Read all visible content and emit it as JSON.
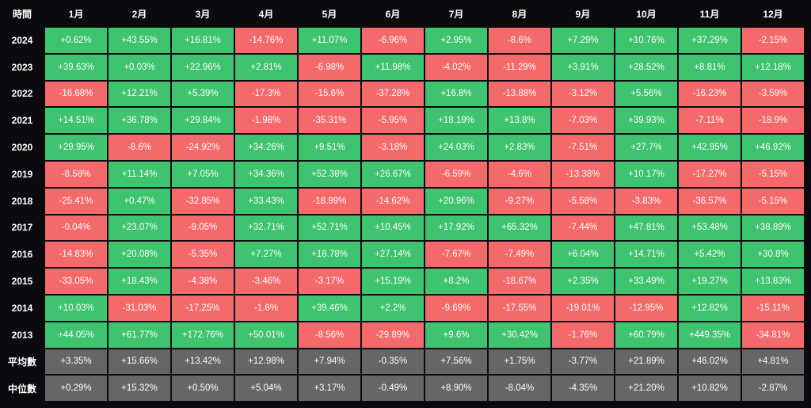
{
  "chart_data": {
    "type": "heatmap",
    "corner_label": "時間",
    "columns": [
      "1月",
      "2月",
      "3月",
      "4月",
      "5月",
      "6月",
      "7月",
      "8月",
      "9月",
      "10月",
      "11月",
      "12月"
    ],
    "rows": [
      {
        "label": "2024",
        "values": [
          "+0.62%",
          "+43.55%",
          "+16.81%",
          "-14.76%",
          "+11.07%",
          "-6.96%",
          "+2.95%",
          "-8.6%",
          "+7.29%",
          "+10.76%",
          "+37.29%",
          "-2.15%"
        ]
      },
      {
        "label": "2023",
        "values": [
          "+39.63%",
          "+0.03%",
          "+22.96%",
          "+2.81%",
          "-6.98%",
          "+11.98%",
          "-4.02%",
          "-11.29%",
          "+3.91%",
          "+28.52%",
          "+8.81%",
          "+12.18%"
        ]
      },
      {
        "label": "2022",
        "values": [
          "-16.68%",
          "+12.21%",
          "+5.39%",
          "-17.3%",
          "-15.6%",
          "-37.28%",
          "+16.8%",
          "-13.88%",
          "-3.12%",
          "+5.56%",
          "-16.23%",
          "-3.59%"
        ]
      },
      {
        "label": "2021",
        "values": [
          "+14.51%",
          "+36.78%",
          "+29.84%",
          "-1.98%",
          "-35.31%",
          "-5.95%",
          "+18.19%",
          "+13.8%",
          "-7.03%",
          "+39.93%",
          "-7.11%",
          "-18.9%"
        ]
      },
      {
        "label": "2020",
        "values": [
          "+29.95%",
          "-8.6%",
          "-24.92%",
          "+34.26%",
          "+9.51%",
          "-3.18%",
          "+24.03%",
          "+2.83%",
          "-7.51%",
          "+27.7%",
          "+42.95%",
          "+46.92%"
        ]
      },
      {
        "label": "2019",
        "values": [
          "-8.58%",
          "+11.14%",
          "+7.05%",
          "+34.36%",
          "+52.38%",
          "+26.67%",
          "-6.59%",
          "-4.6%",
          "-13.38%",
          "+10.17%",
          "-17.27%",
          "-5.15%"
        ]
      },
      {
        "label": "2018",
        "values": [
          "-25.41%",
          "+0.47%",
          "-32.85%",
          "+33.43%",
          "-18.99%",
          "-14.62%",
          "+20.96%",
          "-9.27%",
          "-5.58%",
          "-3.83%",
          "-36.57%",
          "-5.15%"
        ]
      },
      {
        "label": "2017",
        "values": [
          "-0.04%",
          "+23.07%",
          "-9.05%",
          "+32.71%",
          "+52.71%",
          "+10.45%",
          "+17.92%",
          "+65.32%",
          "-7.44%",
          "+47.81%",
          "+53.48%",
          "+38.89%"
        ]
      },
      {
        "label": "2016",
        "values": [
          "-14.83%",
          "+20.08%",
          "-5.35%",
          "+7.27%",
          "+18.78%",
          "+27.14%",
          "-7.67%",
          "-7.49%",
          "+6.04%",
          "+14.71%",
          "+5.42%",
          "+30.8%"
        ]
      },
      {
        "label": "2015",
        "values": [
          "-33.05%",
          "+18.43%",
          "-4.38%",
          "-3.46%",
          "-3.17%",
          "+15.19%",
          "+8.2%",
          "-18.67%",
          "+2.35%",
          "+33.49%",
          "+19.27%",
          "+13.83%"
        ]
      },
      {
        "label": "2014",
        "values": [
          "+10.03%",
          "-31.03%",
          "-17.25%",
          "-1.6%",
          "+39.46%",
          "+2.2%",
          "-9.69%",
          "-17.55%",
          "-19.01%",
          "-12.95%",
          "+12.82%",
          "-15.11%"
        ]
      },
      {
        "label": "2013",
        "values": [
          "+44.05%",
          "+61.77%",
          "+172.76%",
          "+50.01%",
          "-8.56%",
          "-29.89%",
          "+9.6%",
          "+30.42%",
          "-1.76%",
          "+60.79%",
          "+449.35%",
          "-34.81%"
        ]
      }
    ],
    "summary_rows": [
      {
        "label": "平均數",
        "values": [
          "+3.35%",
          "+15.66%",
          "+13.42%",
          "+12.98%",
          "+7.94%",
          "-0.35%",
          "+7.56%",
          "+1.75%",
          "-3.77%",
          "+21.89%",
          "+46.02%",
          "+4.81%"
        ]
      },
      {
        "label": "中位數",
        "values": [
          "+0.29%",
          "+15.32%",
          "+0.50%",
          "+5.04%",
          "+3.17%",
          "-0.49%",
          "+8.90%",
          "-8.04%",
          "-4.35%",
          "+21.20%",
          "+10.82%",
          "-2.87%"
        ]
      }
    ],
    "colors": {
      "positive": "#3ec36f",
      "negative": "#f46a6b",
      "summary": "#666666",
      "background": "#0b0b0f"
    }
  }
}
